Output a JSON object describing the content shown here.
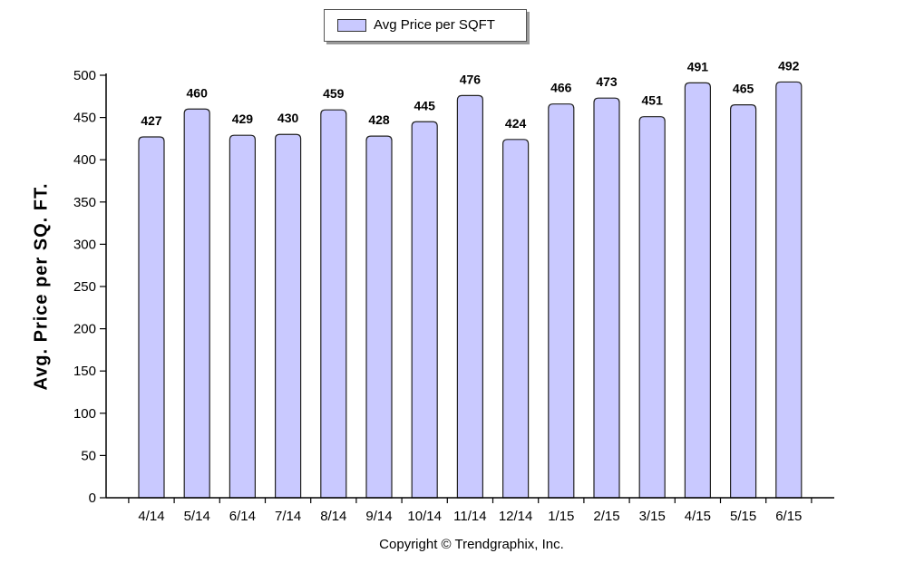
{
  "chart_data": {
    "type": "bar",
    "title": "",
    "xlabel": "",
    "ylabel": "Avg. Price per SQ. FT.",
    "ylim": [
      0,
      500
    ],
    "yticks": [
      0,
      50,
      100,
      150,
      200,
      250,
      300,
      350,
      400,
      450,
      500
    ],
    "grid": false,
    "legend_position": "top-center",
    "categories": [
      "4/14",
      "5/14",
      "6/14",
      "7/14",
      "8/14",
      "9/14",
      "10/14",
      "11/14",
      "12/14",
      "1/15",
      "2/15",
      "3/15",
      "4/15",
      "5/15",
      "6/15"
    ],
    "series": [
      {
        "name": "Avg Price per SQFT",
        "color": "#c9c9ff",
        "values": [
          427,
          460,
          429,
          430,
          459,
          428,
          445,
          476,
          424,
          466,
          473,
          451,
          491,
          465,
          492
        ]
      }
    ],
    "footer": "Copyright © Trendgraphix, Inc."
  }
}
